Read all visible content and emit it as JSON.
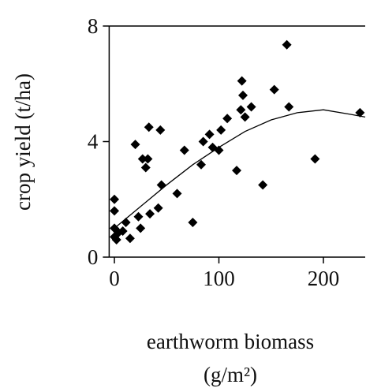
{
  "chart_data": {
    "type": "scatter",
    "xlabel": [
      "earthworm biomass",
      "(g/m²)"
    ],
    "ylabel": "crop yield (t/ha)",
    "xlim": [
      -5,
      240
    ],
    "ylim": [
      0,
      8
    ],
    "xticks": [
      0,
      100,
      200
    ],
    "yticks": [
      0,
      4,
      8
    ],
    "color": "#000000",
    "x": [
      0,
      0,
      0,
      0,
      2,
      4,
      8,
      11,
      15,
      20,
      23,
      25,
      27,
      30,
      32,
      33,
      34,
      42,
      44,
      45,
      60,
      67,
      75,
      83,
      85,
      91,
      94,
      100,
      102,
      108,
      117,
      122,
      121,
      123,
      125,
      131,
      142,
      153,
      165,
      167,
      192,
      235
    ],
    "values": [
      2.0,
      1.6,
      1.0,
      0.7,
      0.6,
      0.85,
      0.9,
      1.2,
      0.65,
      3.9,
      1.4,
      1.0,
      3.4,
      3.1,
      3.4,
      4.5,
      1.5,
      1.7,
      4.4,
      2.5,
      2.2,
      3.7,
      1.2,
      3.2,
      4.0,
      4.25,
      3.8,
      3.7,
      4.4,
      4.8,
      3.0,
      6.1,
      5.1,
      5.6,
      4.85,
      5.2,
      2.5,
      5.8,
      7.35,
      5.2,
      3.4,
      5.0
    ],
    "curve": {
      "x": [
        0,
        25,
        50,
        75,
        100,
        125,
        150,
        175,
        200,
        225,
        240
      ],
      "values": [
        1.0,
        1.75,
        2.5,
        3.2,
        3.8,
        4.35,
        4.75,
        5.0,
        5.1,
        4.95,
        4.85
      ]
    }
  }
}
